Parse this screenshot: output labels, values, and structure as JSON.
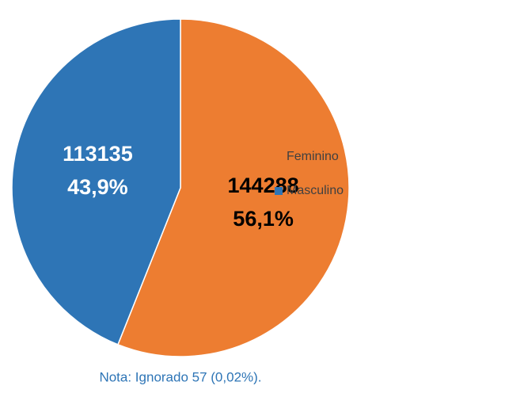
{
  "chart_data": {
    "type": "pie",
    "categories": [
      "Feminino",
      "Masculino"
    ],
    "values": [
      144288,
      113135
    ],
    "percentages": [
      56.1,
      43.9
    ],
    "percentage_labels": [
      "56,1%",
      "43,9%"
    ],
    "colors": [
      "#ed7d31",
      "#2e75b6"
    ],
    "label_colors": [
      "#000000",
      "#ffffff"
    ],
    "note": "Nota: Ignorado 57 (0,02%).",
    "legend": "right"
  }
}
